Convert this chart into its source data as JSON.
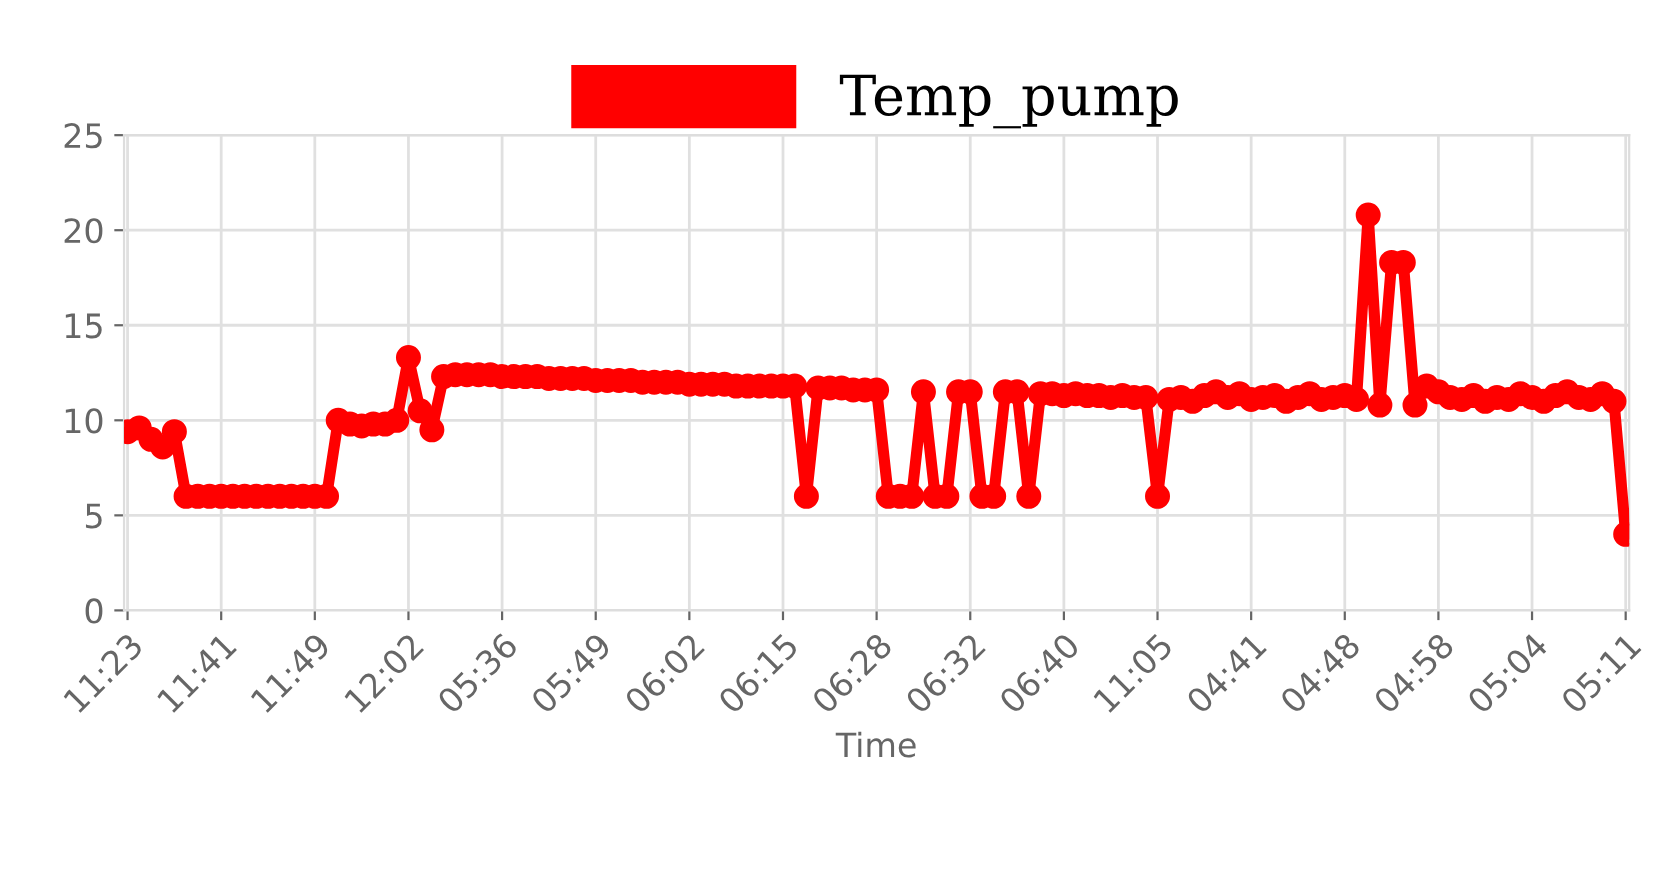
{
  "chart_data": {
    "type": "line",
    "xlabel": "Time",
    "categories": [
      "11:23",
      null,
      null,
      null,
      null,
      null,
      null,
      null,
      "11:41",
      null,
      null,
      null,
      null,
      null,
      null,
      null,
      "11:49",
      null,
      null,
      null,
      null,
      null,
      null,
      null,
      "12:02",
      null,
      null,
      null,
      null,
      null,
      null,
      null,
      "05:36",
      null,
      null,
      null,
      null,
      null,
      null,
      null,
      "05:49",
      null,
      null,
      null,
      null,
      null,
      null,
      null,
      "06:02",
      null,
      null,
      null,
      null,
      null,
      null,
      null,
      "06:15",
      null,
      null,
      null,
      null,
      null,
      null,
      null,
      "06:28",
      null,
      null,
      null,
      null,
      null,
      null,
      null,
      "06:32",
      null,
      null,
      null,
      null,
      null,
      null,
      null,
      "06:40",
      null,
      null,
      null,
      null,
      null,
      null,
      null,
      "11:05",
      null,
      null,
      null,
      null,
      null,
      null,
      null,
      "04:41",
      null,
      null,
      null,
      null,
      null,
      null,
      null,
      "04:48",
      null,
      null,
      null,
      null,
      null,
      null,
      null,
      "04:58",
      null,
      null,
      null,
      null,
      null,
      null,
      null,
      "05:04",
      null,
      null,
      null,
      null,
      null,
      null,
      null,
      "05:11"
    ],
    "series": [
      {
        "name": "Temp_pump",
        "color": "#ff0000",
        "values": [
          9.4,
          9.6,
          9.0,
          8.6,
          9.4,
          6.0,
          6,
          6,
          6,
          6,
          6,
          6,
          6,
          6,
          6,
          6,
          6,
          6,
          10.0,
          9.8,
          9.7,
          9.8,
          9.8,
          10.0,
          13.3,
          10.5,
          9.5,
          12.3,
          12.4,
          12.4,
          12.4,
          12.4,
          12.3,
          12.3,
          12.3,
          12.3,
          12.2,
          12.2,
          12.2,
          12.2,
          12.1,
          12.1,
          12.1,
          12.1,
          12.0,
          12.0,
          12.0,
          12.0,
          11.9,
          11.9,
          11.9,
          11.9,
          11.8,
          11.8,
          11.8,
          11.8,
          11.8,
          11.8,
          6,
          11.7,
          11.7,
          11.7,
          11.6,
          11.6,
          11.6,
          6,
          6,
          6,
          11.5,
          6,
          6,
          11.5,
          11.5,
          6,
          6,
          11.5,
          11.5,
          6,
          11.4,
          11.4,
          11.3,
          11.4,
          11.3,
          11.3,
          11.2,
          11.3,
          11.2,
          11.2,
          6,
          11.1,
          11.2,
          11.0,
          11.3,
          11.5,
          11.2,
          11.4,
          11.1,
          11.2,
          11.3,
          11.0,
          11.2,
          11.4,
          11.1,
          11.2,
          11.3,
          11.1,
          20.8,
          10.8,
          18.3,
          18.3,
          10.8,
          11.8,
          11.5,
          11.2,
          11.1,
          11.3,
          11.0,
          11.2,
          11.1,
          11.4,
          11.2,
          11.0,
          11.3,
          11.5,
          11.2,
          11.1,
          11.4,
          11.0,
          4.0
        ]
      }
    ],
    "ylim": [
      0,
      25
    ],
    "yticks": [
      0,
      5,
      10,
      15,
      20,
      25
    ],
    "grid": true,
    "legend": "top",
    "marker": "circle",
    "line_style": "solid"
  }
}
